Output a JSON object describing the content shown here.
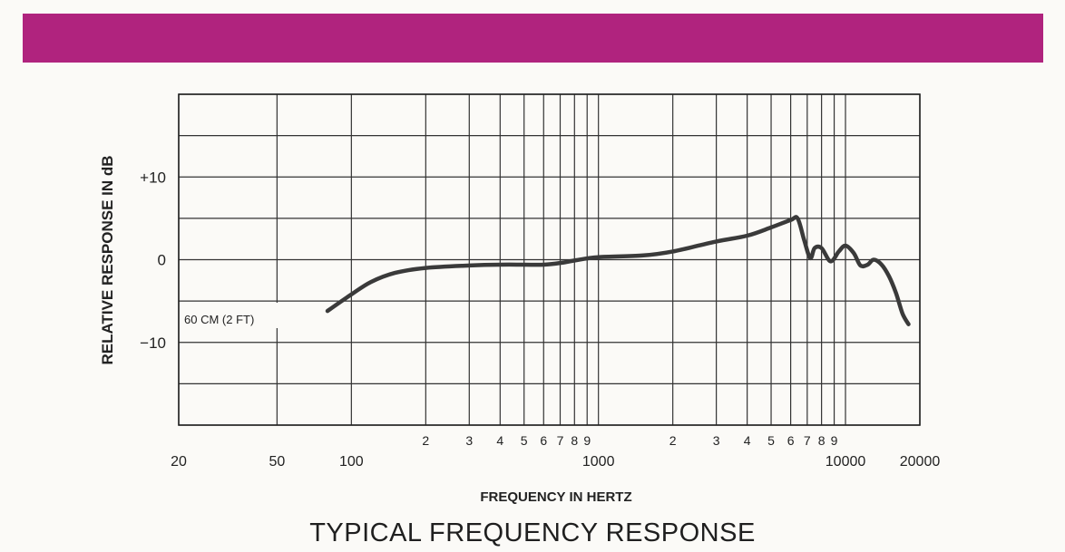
{
  "colors": {
    "band": "#b0237e",
    "curve": "#3a3a3a",
    "grid": "#333333"
  },
  "chart_data": {
    "type": "line",
    "title": "TYPICAL FREQUENCY RESPONSE",
    "xlabel": "FREQUENCY IN HERTZ",
    "ylabel": "RELATIVE RESPONSE IN dB",
    "x_scale": "log",
    "xlim": [
      20,
      20000
    ],
    "ylim": [
      -20,
      20
    ],
    "y_ticks": [
      {
        "value": 10,
        "label": "+10"
      },
      {
        "value": 0,
        "label": "0"
      },
      {
        "value": -10,
        "label": "−10"
      }
    ],
    "x_major_ticks": [
      {
        "value": 20,
        "label": "20"
      },
      {
        "value": 50,
        "label": "50"
      },
      {
        "value": 100,
        "label": "100"
      },
      {
        "value": 1000,
        "label": "1000"
      },
      {
        "value": 10000,
        "label": "10000"
      },
      {
        "value": 20000,
        "label": "20000"
      }
    ],
    "x_minor_ticks": [
      {
        "value": 200,
        "label": "2"
      },
      {
        "value": 300,
        "label": "3"
      },
      {
        "value": 400,
        "label": "4"
      },
      {
        "value": 500,
        "label": "5"
      },
      {
        "value": 600,
        "label": "6"
      },
      {
        "value": 700,
        "label": "7"
      },
      {
        "value": 800,
        "label": "8"
      },
      {
        "value": 900,
        "label": "9"
      },
      {
        "value": 2000,
        "label": "2"
      },
      {
        "value": 3000,
        "label": "3"
      },
      {
        "value": 4000,
        "label": "4"
      },
      {
        "value": 5000,
        "label": "5"
      },
      {
        "value": 6000,
        "label": "6"
      },
      {
        "value": 7000,
        "label": "7"
      },
      {
        "value": 8000,
        "label": "8"
      },
      {
        "value": 9000,
        "label": "9"
      }
    ],
    "grid_x": [
      20,
      50,
      100,
      200,
      300,
      400,
      500,
      600,
      700,
      800,
      900,
      1000,
      2000,
      3000,
      4000,
      5000,
      6000,
      7000,
      8000,
      9000,
      10000,
      20000
    ],
    "grid_y": [
      20,
      15,
      10,
      5,
      0,
      -5,
      -10,
      -15,
      -20
    ],
    "annotation": "60 CM (2 FT)",
    "series": [
      {
        "x": [
          80,
          100,
          120,
          150,
          200,
          300,
          400,
          500,
          600,
          700,
          800,
          1000,
          1500,
          2000,
          3000,
          4000,
          5000,
          6000,
          6400,
          6800,
          7200,
          7500,
          8000,
          8700,
          9400,
          10000,
          10800,
          11500,
          12300,
          13000,
          14000,
          15000,
          16000,
          17000,
          18000
        ],
        "y": [
          -6.2,
          -4.2,
          -2.7,
          -1.6,
          -1.0,
          -0.7,
          -0.6,
          -0.6,
          -0.6,
          -0.4,
          -0.1,
          0.3,
          0.5,
          1.0,
          2.2,
          2.9,
          3.9,
          4.8,
          5.0,
          2.4,
          0.2,
          1.4,
          1.4,
          -0.2,
          1.0,
          1.7,
          0.8,
          -0.7,
          -0.6,
          0.0,
          -0.6,
          -2.0,
          -4.0,
          -6.5,
          -7.8
        ]
      }
    ]
  }
}
